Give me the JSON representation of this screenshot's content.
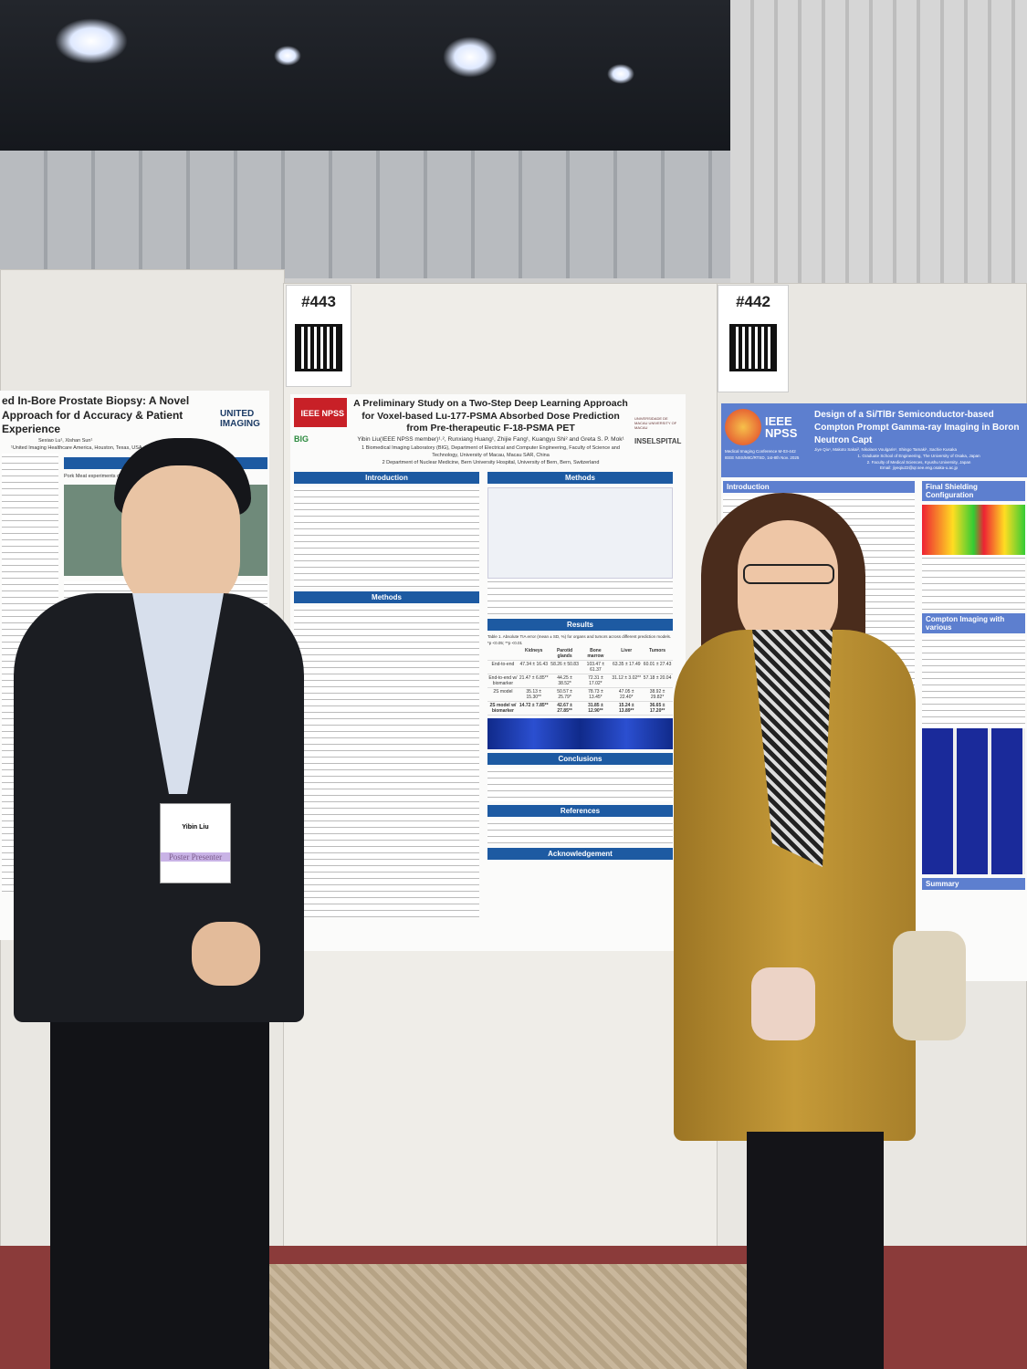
{
  "scene": {
    "colors": {
      "ceiling": "#1a1d22",
      "board": "#e9e7e2",
      "poster_blue": "#1d5aa2",
      "suit": "#1b1d22",
      "coat": "#b8902e",
      "carpet": "#8b3b3a"
    }
  },
  "left_poster": {
    "title": "ed In-Bore Prostate Biopsy: A Novel Approach for d Accuracy & Patient Experience",
    "authors": "Sexiao Lu¹, Xishan Sun¹",
    "affiliation": "¹United Imaging Healthcare America, Houston, Texas, USA",
    "logo": "UNITED IMAGING",
    "results_header": "RESULTS",
    "snippet": "Pork Meat experiments demonstrated"
  },
  "center_poster": {
    "tag": "#443",
    "logo": "IEEE NPSS",
    "title": "A Preliminary Study on a Two-Step Deep Learning Approach for Voxel-based Lu-177-PSMA Absorbed Dose Prediction from Pre-therapeutic F-18-PSMA PET",
    "authors": "Yibin Liu(IEEE NPSS member)¹˒², Runxiang Huang¹, Zhijie Fang¹, Kuangyu Shi² and Greta S. P. Mok¹",
    "affiliation1": "1 Biomedical Imaging Laboratory (BIG), Department of Electrical and Computer Engineering, Faculty of Science and Technology, University of Macau, Macau SAR, China",
    "affiliation2": "2 Department of Nuclear Medicine, Bern University Hospital, University of Bern, Bern, Switzerland",
    "logo_big": "BIG",
    "logo_um": "UNIVERSIDADE DE MACAU UNIVERSITY OF MACAU",
    "logo_insel": "INSELSPITAL",
    "sections": {
      "introduction": "Introduction",
      "methods_left": "Methods",
      "methods_right": "Methods",
      "results": "Results",
      "conclusions": "Conclusions",
      "references": "References",
      "acknowledgement": "Acknowledgement"
    },
    "table_caption": "Table 1. Absolute TIA error (mean ± SD, %) for organs and tumors across different prediction models. *p <0.05; **p <0.01",
    "table": {
      "headers": [
        "",
        "Kidneys",
        "Parotid glands",
        "Bone marrow",
        "Liver",
        "Tumors"
      ],
      "rows": [
        [
          "End-to-end",
          "47.34 ± 16.43",
          "58.26 ± 50.83",
          "103.47 ± 61.37",
          "63.35 ± 17.49",
          "60.01 ± 27.43"
        ],
        [
          "End-to-end w/ biomarker",
          "21.47 ± 6.85**",
          "44.25 ± 38.52*",
          "72.31 ± 17.02*",
          "31.12 ± 3.02**",
          "57.18 ± 20.04"
        ],
        [
          "2S model",
          "35.13 ± 15.30**",
          "50.57 ± 25.79*",
          "78.73 ± 13.45*",
          "47.05 ± 22.40*",
          "38.92 ± 29.82*"
        ],
        [
          "2S model w/ biomarker",
          "14.72 ± 7.85**",
          "42.67 ± 27.85**",
          "31.85 ± 12.90**",
          "15.24 ± 13.89**",
          "36.65 ± 17.20**"
        ]
      ]
    }
  },
  "right_poster": {
    "tag": "#442",
    "logo": "IEEE NPSS",
    "title": "Design of a Si/TlBr Semiconductor-based Compton Prompt Gamma-ray Imaging in Boron Neutron Capt",
    "authors": "Jiye Qiu¹, Makoto Sakai², Nikolaos Voulgaris¹, Shingo Tamaki¹, Sachie Kusaka",
    "affiliation1": "1. Graduate School of Engineering, The University of Osaka, Japan",
    "affiliation2": "2. Faculty of Medical Sciences, Kyushu University, Japan",
    "email": "Email: jiyeqiu22@qr.see.eng.osaka-u.ac.jp",
    "conference": "Medical Imaging Conference M-03-442",
    "conference2": "IEEE NSS/MIC/RTSD, 1st-8th Nov. 2025",
    "sections": {
      "introduction": "Introduction",
      "shielding": "Final Shielding Configuration",
      "compton": "Compton Imaging with various",
      "summary": "Summary"
    }
  },
  "badge": {
    "name": "Yibin Liu",
    "role": "Poster Presenter"
  }
}
